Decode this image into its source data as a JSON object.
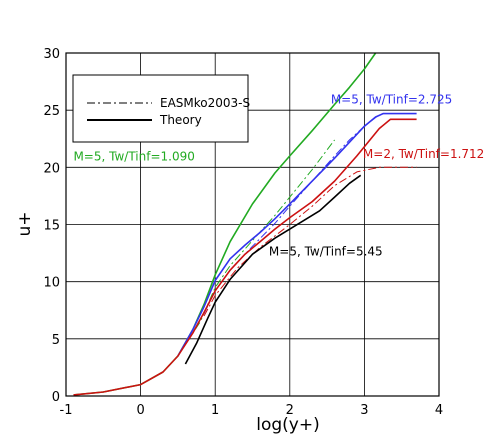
{
  "chart_data": {
    "type": "line",
    "title": "",
    "xlabel": "log(y+)",
    "ylabel": "u+",
    "xlim": [
      -1,
      4
    ],
    "ylim": [
      0,
      30
    ],
    "xticks": [
      -1,
      0,
      1,
      2,
      3,
      4
    ],
    "yticks": [
      0,
      5,
      10,
      15,
      20,
      25,
      30
    ],
    "grid": true,
    "legend": {
      "placement": "top-left",
      "entries": [
        {
          "label": "EASMko2003-S",
          "style": "dash-dot",
          "color": "#000000"
        },
        {
          "label": "Theory",
          "style": "solid",
          "color": "#000000"
        }
      ]
    },
    "annotations": [
      {
        "text": "M=5, Tw/Tinf=1.090",
        "x": -0.9,
        "y": 20.6,
        "color": "#22aa22"
      },
      {
        "text": "M=5, Tw/Tinf=2.725",
        "x": 2.55,
        "y": 25.6,
        "color": "#3333ee"
      },
      {
        "text": "M=2, Tw/Tinf=1.712",
        "x": 2.98,
        "y": 20.8,
        "color": "#cc1111"
      },
      {
        "text": "M=5, Tw/Tinf=5.45",
        "x": 1.72,
        "y": 12.3,
        "color": "#000000"
      }
    ],
    "series": [
      {
        "color": "#22aa22",
        "style": "solid",
        "x": [
          -0.9,
          -0.5,
          0.0,
          0.3,
          0.5,
          0.7,
          0.85,
          1.0,
          1.2,
          1.5,
          1.8,
          2.0,
          2.3,
          2.6,
          2.8,
          3.0,
          3.15
        ],
        "y": [
          0.1,
          0.35,
          1.0,
          2.1,
          3.5,
          5.8,
          8.0,
          10.6,
          13.5,
          16.8,
          19.5,
          21.0,
          23.2,
          25.5,
          27.0,
          28.6,
          30.0
        ]
      },
      {
        "color": "#22aa22",
        "style": "dash-dot",
        "x": [
          0.5,
          0.8,
          1.0,
          1.2,
          1.5,
          1.8,
          2.0,
          2.3,
          2.6
        ],
        "y": [
          3.5,
          6.5,
          9.5,
          11.4,
          13.6,
          15.8,
          17.4,
          19.8,
          22.4
        ]
      },
      {
        "color": "#3333ee",
        "style": "solid",
        "x": [
          0.5,
          0.7,
          0.85,
          1.0,
          1.2,
          1.4,
          1.6,
          1.8,
          2.0,
          2.3,
          2.6,
          2.8,
          3.0,
          3.15,
          3.25,
          3.4,
          3.6,
          3.7
        ],
        "y": [
          3.5,
          5.8,
          7.8,
          10.1,
          12.0,
          13.2,
          14.3,
          15.5,
          16.8,
          18.8,
          20.8,
          22.2,
          23.6,
          24.4,
          24.7,
          24.7,
          24.7,
          24.7
        ]
      },
      {
        "color": "#3333ee",
        "style": "dash-dot",
        "x": [
          0.85,
          1.0,
          1.2,
          1.5,
          1.8,
          2.0,
          2.3,
          2.6,
          2.8,
          3.0,
          3.2
        ],
        "y": [
          7.2,
          9.2,
          11.0,
          13.1,
          15.1,
          16.6,
          18.8,
          21.0,
          22.4,
          23.6,
          24.6
        ]
      },
      {
        "color": "#cc1111",
        "style": "solid",
        "x": [
          -0.9,
          -0.5,
          0.0,
          0.3,
          0.5,
          0.7,
          0.85,
          1.0,
          1.2,
          1.4,
          1.6,
          1.8,
          2.0,
          2.3,
          2.6,
          2.9,
          3.2,
          3.35,
          3.7
        ],
        "y": [
          0.1,
          0.35,
          1.0,
          2.1,
          3.5,
          5.5,
          7.3,
          9.2,
          11.0,
          12.4,
          13.5,
          14.6,
          15.6,
          17.0,
          18.8,
          21.0,
          23.4,
          24.2,
          24.2
        ]
      },
      {
        "color": "#cc1111",
        "style": "dash-dot",
        "x": [
          0.85,
          1.0,
          1.3,
          1.6,
          2.0,
          2.3,
          2.6,
          2.9,
          3.2,
          3.7
        ],
        "y": [
          7.0,
          8.8,
          11.2,
          13.0,
          15.0,
          16.6,
          18.4,
          19.6,
          20.0,
          20.0
        ]
      },
      {
        "color": "#000000",
        "style": "solid",
        "x": [
          0.6,
          0.75,
          0.9,
          1.0,
          1.2,
          1.5,
          1.8,
          2.0,
          2.2,
          2.4,
          2.6,
          2.8,
          2.95
        ],
        "y": [
          2.8,
          4.6,
          6.8,
          8.2,
          10.2,
          12.4,
          13.8,
          14.6,
          15.4,
          16.2,
          17.4,
          18.6,
          19.3
        ]
      }
    ]
  }
}
